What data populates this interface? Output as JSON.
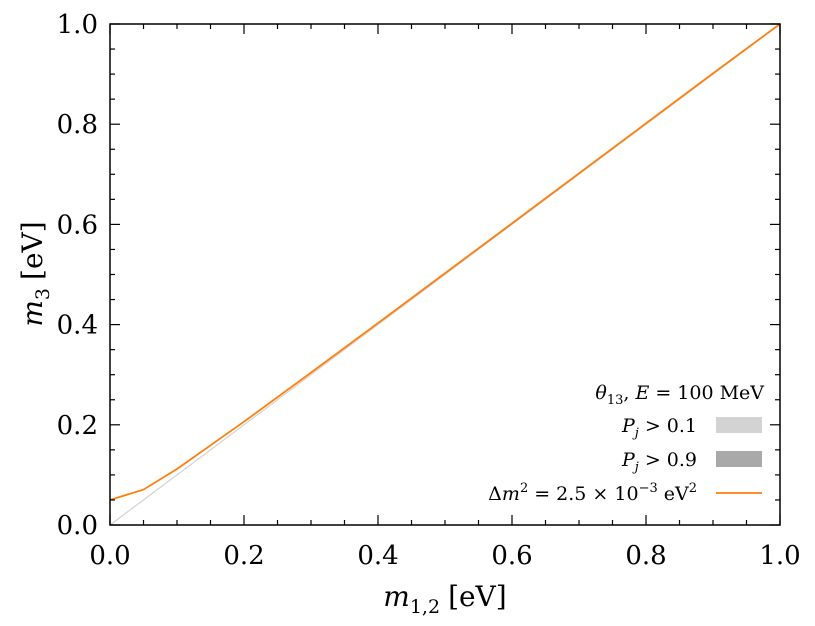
{
  "chart_data": {
    "type": "line",
    "xlabel": {
      "var": "m",
      "sub": "1,2",
      "unit": "[eV]"
    },
    "ylabel": {
      "var": "m",
      "sub": "3",
      "unit": "[eV]"
    },
    "xlim": [
      0.0,
      1.0
    ],
    "ylim": [
      0.0,
      1.0
    ],
    "xticks": [
      "0.0",
      "0.2",
      "0.4",
      "0.6",
      "0.8",
      "1.0"
    ],
    "yticks": [
      "0.0",
      "0.2",
      "0.4",
      "0.6",
      "0.8",
      "1.0"
    ],
    "grid": false,
    "legend": {
      "placement": "lower-right",
      "title": {
        "theta": "θ",
        "theta_sub": "13",
        "sep": ",",
        "E": "E",
        "rest": "= 100 MeV"
      },
      "entries": [
        {
          "var": "P",
          "sub": "j",
          "rest": "> 0.1",
          "kind": "patch",
          "color": "#d3d3d3"
        },
        {
          "var": "P",
          "sub": "j",
          "rest": "> 0.9",
          "kind": "patch",
          "color": "#a9a9a9"
        },
        {
          "delta": "Δ",
          "var": "m",
          "sup": "2",
          "rest": "= 2.5 × 10",
          "exp": "−3",
          "unit": "eV",
          "unit_sup": "2",
          "kind": "line",
          "color": "#ff7f0e"
        }
      ]
    },
    "series": [
      {
        "kind": "line",
        "color": "#ff7f0e",
        "x": [
          0.0,
          0.05,
          0.1,
          0.2,
          0.3,
          0.4,
          0.5,
          0.6,
          0.7,
          0.8,
          0.9,
          1.0
        ],
        "y": [
          0.05,
          0.0707,
          0.1118,
          0.2062,
          0.3041,
          0.4031,
          0.5025,
          0.6021,
          0.7018,
          0.8016,
          0.9014,
          1.0012
        ]
      },
      {
        "kind": "line",
        "color": "#d3d3d3",
        "x": [
          0.0,
          1.0
        ],
        "y": [
          0.0,
          1.0
        ]
      }
    ]
  }
}
